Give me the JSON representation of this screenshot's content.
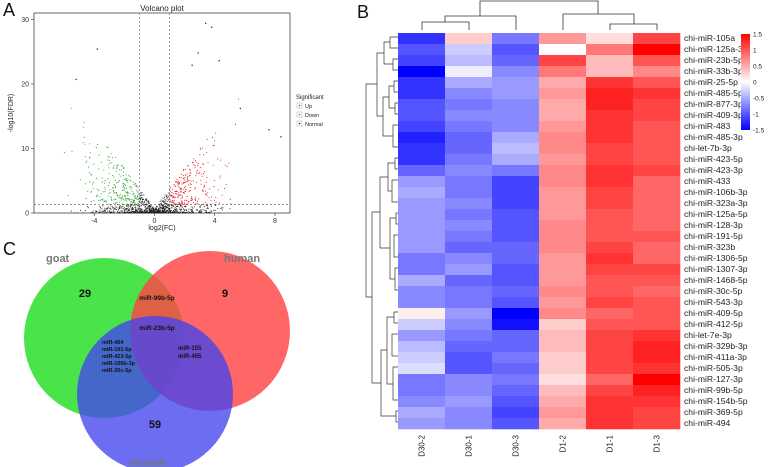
{
  "panels": {
    "a": {
      "letter": "A"
    },
    "b": {
      "letter": "B"
    },
    "c": {
      "letter": "C"
    }
  },
  "chart_data": [
    {
      "type": "scatter",
      "panel": "A",
      "title": "Volcano plot",
      "xlabel": "log2(FC)",
      "ylabel": "-log10(FDR)",
      "xlim": [
        -8,
        9
      ],
      "ylim": [
        0,
        31
      ],
      "x_ticks": [
        -4,
        0,
        4,
        8
      ],
      "x_tick_labels": [
        "-4",
        "0",
        "4",
        "8"
      ],
      "y_ticks": [
        0,
        10,
        20,
        30
      ],
      "y_tick_labels": [
        "0",
        "10",
        "20",
        "30"
      ],
      "thresholds": {
        "log2fc": [
          -1,
          1
        ],
        "neg_log10_fdr": 1.3
      },
      "legend": {
        "title": "Significant",
        "position": "right",
        "entries": [
          "Up",
          "Down",
          "Normal"
        ],
        "colors": {
          "Up": "#e41a1c",
          "Down": "#2ca02c",
          "Normal": "#222222"
        }
      },
      "highlighted_points": [
        {
          "x": 3.4,
          "y": 29.4,
          "group": "Normal"
        },
        {
          "x": 3.8,
          "y": 28.8,
          "group": "Normal"
        },
        {
          "x": 2.9,
          "y": 24.8,
          "group": "Normal"
        },
        {
          "x": 4.3,
          "y": 23.6,
          "group": "Normal"
        },
        {
          "x": 2.5,
          "y": 22.9,
          "group": "Normal"
        },
        {
          "x": 5.7,
          "y": 16.2,
          "group": "Normal"
        },
        {
          "x": 8.4,
          "y": 11.8,
          "group": "Normal"
        },
        {
          "x": 7.6,
          "y": 12.9,
          "group": "Normal"
        },
        {
          "x": -3.8,
          "y": 25.4,
          "group": "Normal"
        },
        {
          "x": -5.2,
          "y": 20.7,
          "group": "Normal"
        }
      ]
    },
    {
      "type": "heatmap",
      "panel": "B",
      "columns": [
        "D30-2",
        "D30-1",
        "D30-3",
        "D1-2",
        "D1-1",
        "D1-3"
      ],
      "rows": [
        "chi-miR-105a",
        "chi-miR-125a-3p",
        "chi-miR-23b-5p",
        "chi-miR-33b-3p",
        "chi-miR-25-5p",
        "chi-miR-485-5p",
        "chi-miR-877-3p",
        "chi-miR-409-3p",
        "chi-miR-483",
        "chi-miR-485-3p",
        "chi-let-7b-3p",
        "chi-miR-423-5p",
        "chi-miR-423-3p",
        "chi-miR-433",
        "chi-miR-106b-3p",
        "chi-miR-323a-3p",
        "chi-miR-125a-5p",
        "chi-miR-128-3p",
        "chi-miR-191-5p",
        "chi-miR-323b",
        "chi-miR-1306-5p",
        "chi-miR-1307-3p",
        "chi-miR-1468-5p",
        "chi-miR-30c-5p",
        "chi-miR-543-3p",
        "chi-miR-409-5p",
        "chi-miR-412-5p",
        "chi-let-7e-3p",
        "chi-miR-329b-3p",
        "chi-miR-411a-3p",
        "chi-miR-505-3p",
        "chi-miR-127-3p",
        "chi-miR-99b-5p",
        "chi-miR-154b-5p",
        "chi-miR-369-5p",
        "chi-miR-494"
      ],
      "values": [
        [
          -1.2,
          0.3,
          -0.8,
          0.6,
          0.2,
          1.1
        ],
        [
          -1.0,
          -0.3,
          -1.0,
          0.0,
          0.8,
          1.6
        ],
        [
          -1.1,
          -0.4,
          -0.9,
          1.1,
          0.4,
          1.0
        ],
        [
          -1.6,
          -0.1,
          -0.7,
          0.8,
          0.4,
          0.7
        ],
        [
          -1.2,
          -0.5,
          -0.6,
          0.5,
          1.2,
          1.0
        ],
        [
          -1.2,
          -0.7,
          -0.6,
          0.6,
          1.3,
          1.2
        ],
        [
          -1.0,
          -0.8,
          -0.7,
          0.5,
          1.3,
          1.1
        ],
        [
          -1.0,
          -0.7,
          -0.7,
          0.5,
          1.2,
          1.1
        ],
        [
          -1.1,
          -0.8,
          -0.7,
          0.6,
          1.2,
          1.0
        ],
        [
          -1.3,
          -0.9,
          -0.5,
          0.7,
          1.2,
          1.0
        ],
        [
          -1.2,
          -0.9,
          -0.4,
          0.7,
          1.1,
          1.0
        ],
        [
          -1.2,
          -0.8,
          -0.5,
          0.6,
          1.1,
          1.0
        ],
        [
          -0.9,
          -0.7,
          -0.8,
          0.7,
          1.2,
          1.1
        ],
        [
          -0.6,
          -0.8,
          -1.1,
          0.7,
          1.2,
          0.9
        ],
        [
          -0.5,
          -0.8,
          -1.1,
          0.6,
          1.1,
          0.9
        ],
        [
          -0.6,
          -0.7,
          -1.1,
          0.6,
          1.1,
          0.9
        ],
        [
          -0.6,
          -0.8,
          -1.0,
          0.6,
          1.0,
          0.9
        ],
        [
          -0.6,
          -0.7,
          -1.0,
          0.7,
          1.0,
          0.9
        ],
        [
          -0.6,
          -0.8,
          -1.0,
          0.7,
          1.0,
          1.0
        ],
        [
          -0.6,
          -0.9,
          -0.9,
          0.7,
          1.1,
          0.9
        ],
        [
          -0.8,
          -0.7,
          -0.9,
          0.6,
          1.2,
          0.9
        ],
        [
          -0.8,
          -0.6,
          -1.0,
          0.6,
          1.1,
          1.1
        ],
        [
          -0.5,
          -0.9,
          -1.0,
          0.6,
          1.0,
          1.0
        ],
        [
          -0.7,
          -0.8,
          -0.9,
          0.7,
          1.0,
          0.9
        ],
        [
          -0.7,
          -0.8,
          -1.0,
          0.6,
          1.1,
          1.0
        ],
        [
          0.1,
          -0.6,
          -1.6,
          0.7,
          0.9,
          1.0
        ],
        [
          -0.3,
          -0.7,
          -1.4,
          0.3,
          1.0,
          1.0
        ],
        [
          -0.6,
          -0.8,
          -0.9,
          0.4,
          1.1,
          1.2
        ],
        [
          -0.4,
          -0.9,
          -0.9,
          0.4,
          1.1,
          1.3
        ],
        [
          -0.3,
          -1.0,
          -0.8,
          0.3,
          1.1,
          1.3
        ],
        [
          -0.2,
          -1.0,
          -0.9,
          0.3,
          1.1,
          1.2
        ],
        [
          -0.8,
          -0.7,
          -0.8,
          0.2,
          0.9,
          1.6
        ],
        [
          -0.8,
          -0.7,
          -0.9,
          0.4,
          1.1,
          1.3
        ],
        [
          -0.7,
          -0.6,
          -1.0,
          0.5,
          1.2,
          1.2
        ],
        [
          -0.5,
          -0.7,
          -1.1,
          0.6,
          1.2,
          1.1
        ],
        [
          -0.6,
          -0.7,
          -1.0,
          0.5,
          1.2,
          1.1
        ]
      ],
      "color_scale": {
        "min": -1.5,
        "max": 1.5,
        "low": "#0000ff",
        "mid": "#ffffff",
        "high": "#ff0000"
      },
      "legend_ticks": [
        1.5,
        1,
        0.5,
        0,
        -0.5,
        -1,
        -1.5
      ],
      "legend_tick_labels": [
        "1.5",
        "1",
        "0.5",
        "0",
        "-0.5",
        "-1",
        "-1.5"
      ]
    },
    {
      "type": "venn",
      "panel": "C",
      "sets": [
        {
          "name": "goat",
          "color": "#22dd22"
        },
        {
          "name": "human",
          "color": "#ff4444"
        },
        {
          "name": "mouse",
          "color": "#4444ee"
        }
      ],
      "regions": {
        "goat_only": "29",
        "human_only": "9",
        "mouse_only": "59",
        "goat_human": "miR-99b-5p",
        "all_three": "miR-23b-5p",
        "goat_mouse": [
          "miR-494",
          "miR-191-5p",
          "miR-423-5p",
          "miR-106b-3p",
          "miR-30c-5p"
        ],
        "human_mouse": [
          "miR-155",
          "miR-455"
        ]
      }
    }
  ]
}
